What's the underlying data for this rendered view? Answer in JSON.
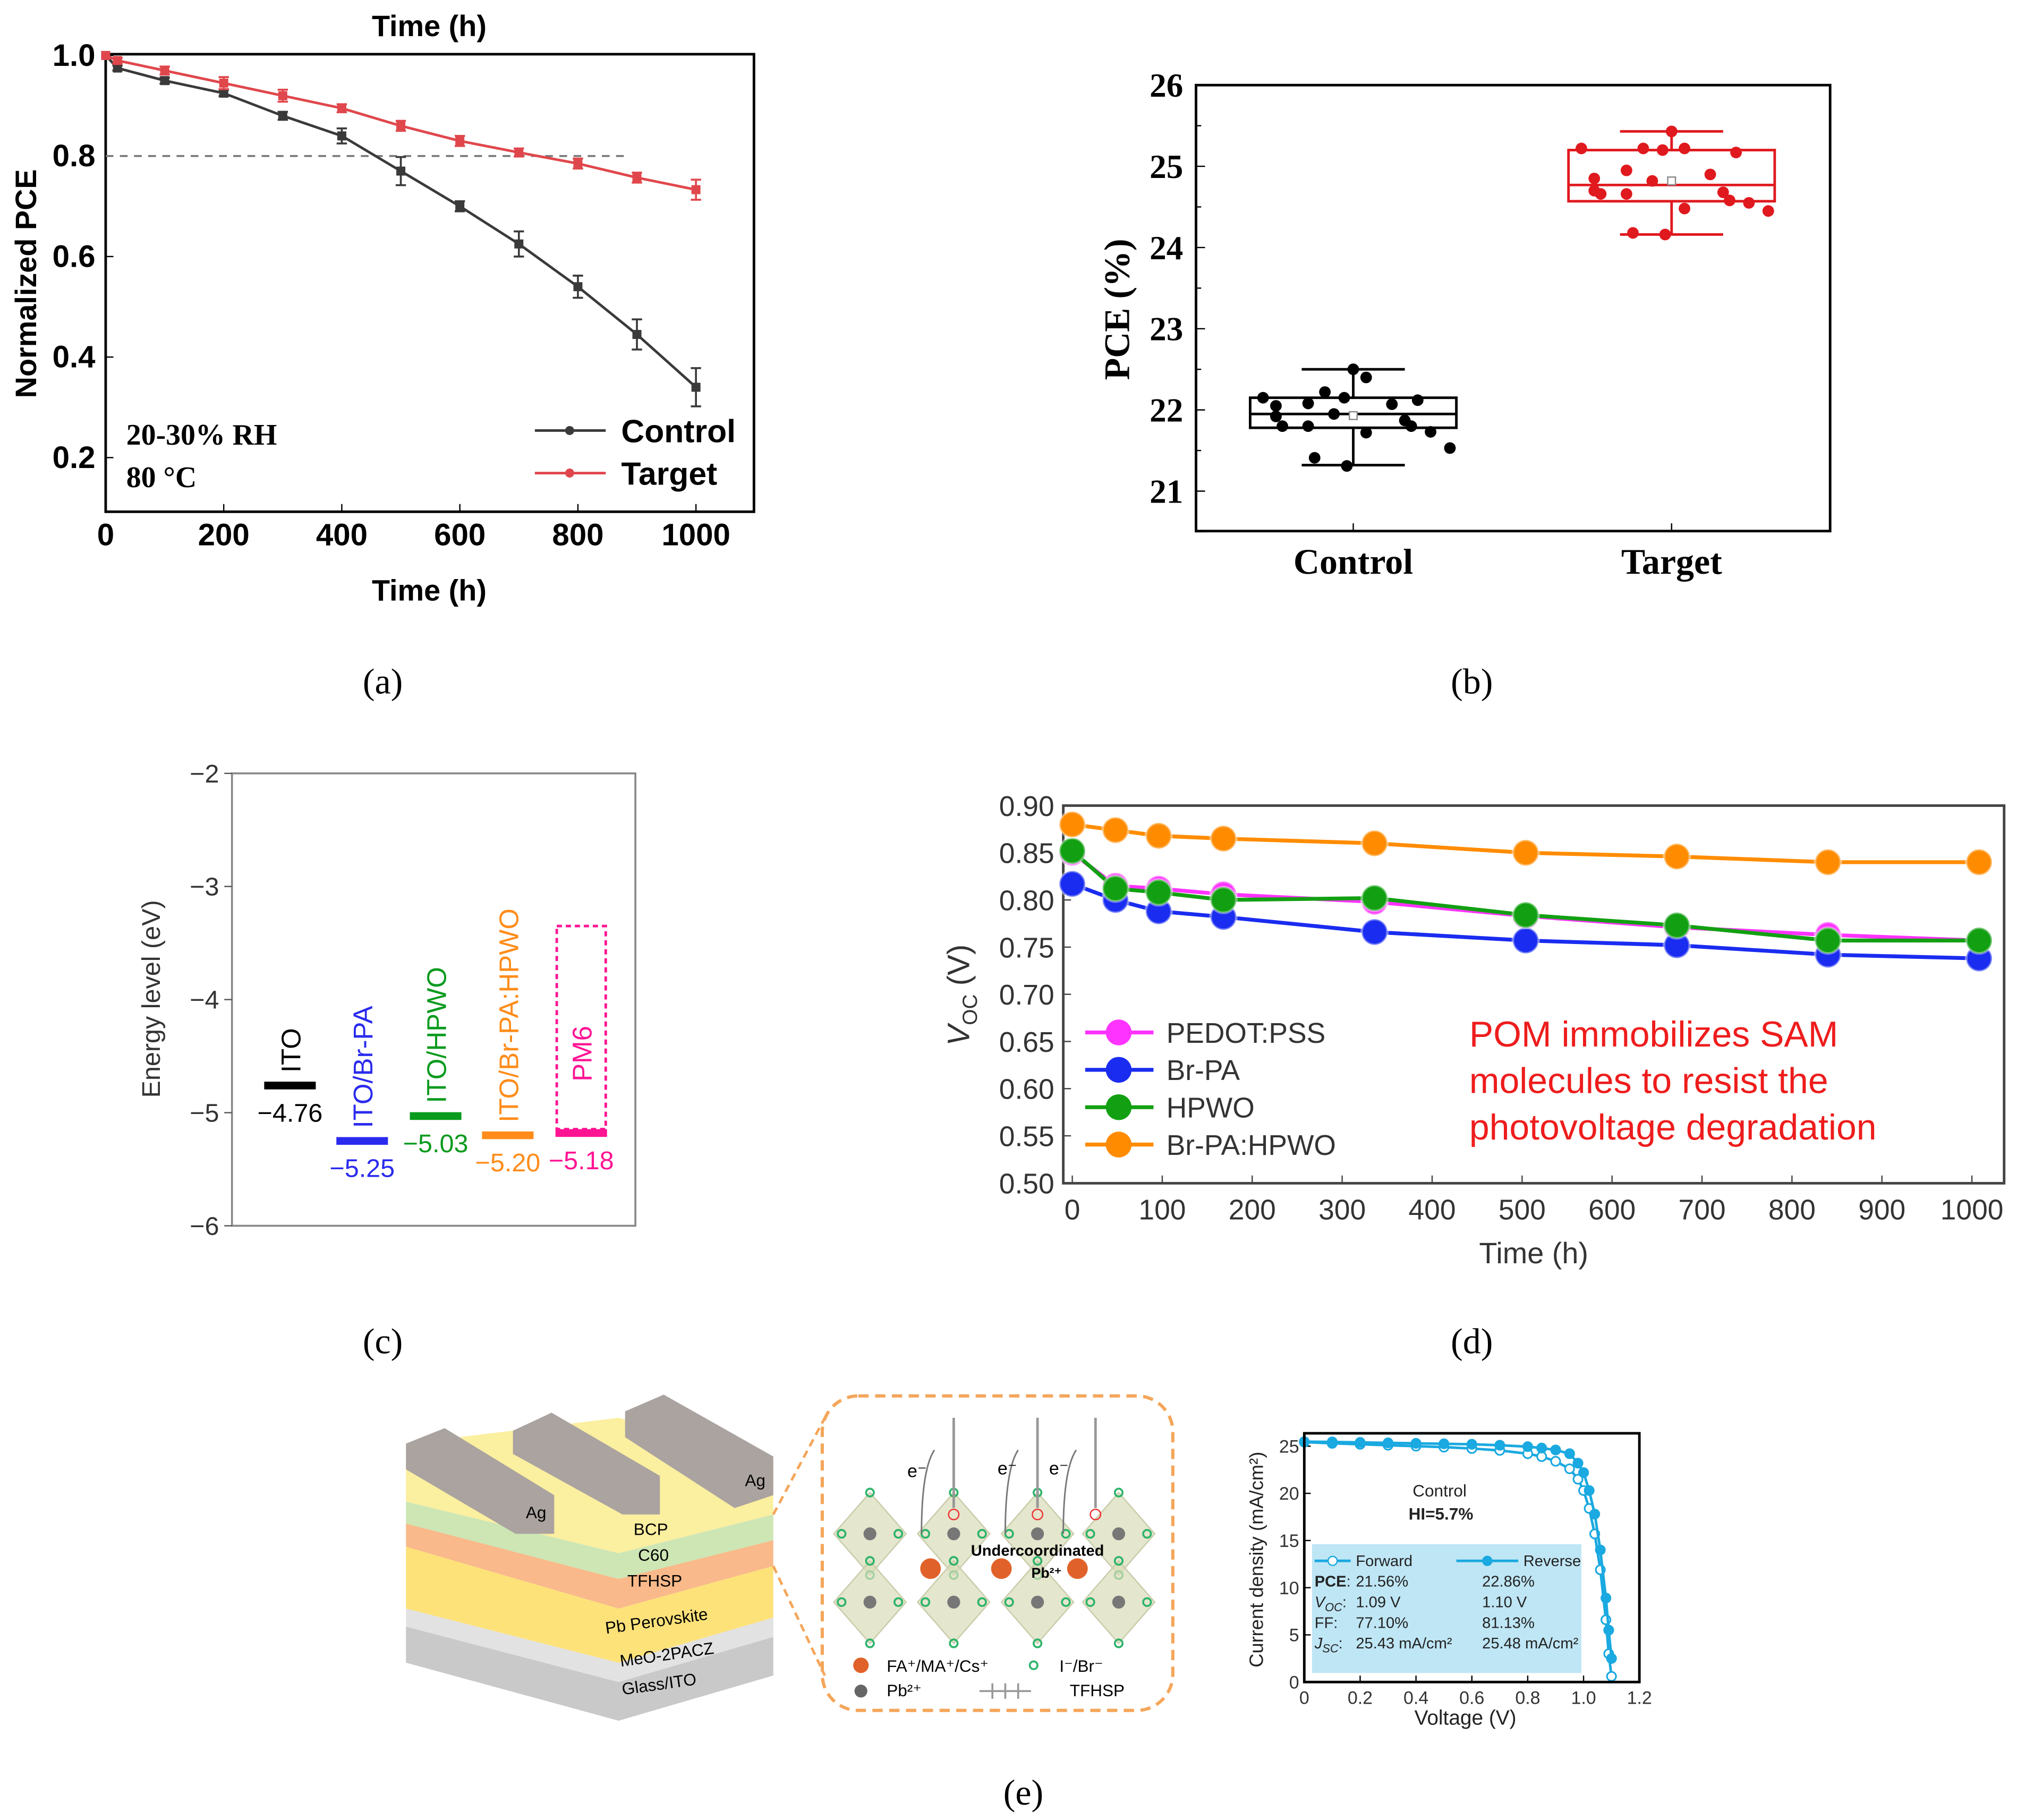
{
  "panel_labels": {
    "a": "(a)",
    "b": "(b)",
    "c": "(c)",
    "d": "(d)",
    "e": "(e)"
  },
  "chart_data": [
    {
      "id": "a",
      "type": "line",
      "title": "Time (h)",
      "xlabel": "Time (h)",
      "ylabel": "Normalized PCE",
      "xlim": [
        0,
        1100
      ],
      "ylim": [
        0.09,
        1.0
      ],
      "xticks": [
        0,
        200,
        400,
        600,
        800,
        1000
      ],
      "yticks": [
        0.2,
        0.4,
        0.6,
        0.8,
        1.0
      ],
      "x": [
        0,
        20,
        100,
        200,
        300,
        400,
        500,
        600,
        700,
        800,
        900,
        1000
      ],
      "series": [
        {
          "name": "Control",
          "color": "#3a3a3a",
          "values": [
            1.0,
            0.975,
            0.95,
            0.925,
            0.88,
            0.84,
            0.77,
            0.7,
            0.625,
            0.54,
            0.445,
            0.34
          ],
          "errors": [
            0,
            0.005,
            0.006,
            0.006,
            0.008,
            0.015,
            0.028,
            0.01,
            0.025,
            0.022,
            0.03,
            0.038
          ]
        },
        {
          "name": "Target",
          "color": "#e0474c",
          "values": [
            1.0,
            0.99,
            0.97,
            0.945,
            0.92,
            0.895,
            0.86,
            0.83,
            0.807,
            0.785,
            0.757,
            0.733
          ],
          "errors": [
            0,
            0.005,
            0.008,
            0.012,
            0.012,
            0.008,
            0.01,
            0.01,
            0.008,
            0.01,
            0.01,
            0.02
          ]
        }
      ],
      "reference_line": {
        "y": 0.8,
        "x_range": [
          0,
          880
        ],
        "style": "dashed"
      },
      "annotations": [
        "20-30% RH",
        "80 °C"
      ],
      "legend": "bottom-right"
    },
    {
      "id": "b",
      "type": "box",
      "ylabel": "PCE (%)",
      "ylim": [
        20.5,
        26
      ],
      "yticks": [
        21,
        22,
        23,
        24,
        25,
        26
      ],
      "categories": [
        "Control",
        "Target"
      ],
      "series": [
        {
          "name": "Control",
          "color": "#000000",
          "q1": 21.78,
          "median": 21.95,
          "q3": 22.15,
          "whisker_low": 21.32,
          "whisker_high": 22.5,
          "mean": 21.93,
          "points": [
            22.5,
            22.4,
            22.22,
            22.15,
            22.15,
            22.12,
            22.08,
            22.07,
            22.05,
            21.95,
            21.92,
            21.87,
            21.8,
            21.8,
            21.8,
            21.73,
            21.72,
            21.53,
            21.41,
            21.31
          ]
        },
        {
          "name": "Target",
          "color": "#e0191e",
          "q1": 24.57,
          "median": 24.77,
          "q3": 25.2,
          "whisker_low": 24.16,
          "whisker_high": 25.43,
          "mean": 24.82,
          "points": [
            25.43,
            25.22,
            25.22,
            25.22,
            25.2,
            25.17,
            24.95,
            24.9,
            24.85,
            24.82,
            24.7,
            24.68,
            24.66,
            24.66,
            24.58,
            24.55,
            24.48,
            24.45,
            24.18,
            24.16
          ]
        }
      ]
    },
    {
      "id": "c",
      "type": "bar",
      "ylabel": "Energy level (eV)",
      "ylim": [
        -6,
        -2
      ],
      "yticks": [
        -2,
        -3,
        -4,
        -5,
        -6
      ],
      "items": [
        {
          "name": "ITO",
          "value": -4.76,
          "label": "−4.76",
          "color": "#000000"
        },
        {
          "name": "ITO/Br-PA",
          "value": -5.25,
          "label": "−5.25",
          "color": "#2a2aee"
        },
        {
          "name": "ITO/HPWO",
          "value": -5.03,
          "label": "−5.03",
          "color": "#0a9a1e"
        },
        {
          "name": "ITO/Br-PA:HPWO",
          "value": -5.2,
          "label": "−5.20",
          "color": "#ff8c1a"
        },
        {
          "name": "PM6",
          "value": -5.18,
          "label": "−5.18",
          "color": "#ff1493",
          "dashed_top": -3.35
        }
      ]
    },
    {
      "id": "d",
      "type": "line",
      "xlabel": "Time (h)",
      "ylabel": "V",
      "ylabel_sub": "OC",
      "ylabel_unit": " (V)",
      "xlim": [
        -10,
        1030
      ],
      "ylim": [
        0.5,
        0.9
      ],
      "xticks": [
        0,
        100,
        200,
        300,
        400,
        500,
        600,
        700,
        800,
        900,
        1000
      ],
      "yticks": [
        0.5,
        0.55,
        0.6,
        0.65,
        0.7,
        0.75,
        0.8,
        0.85,
        0.9
      ],
      "x": [
        0,
        48,
        96,
        168,
        336,
        504,
        672,
        840,
        1008
      ],
      "series": [
        {
          "name": "PEDOT:PSS",
          "color": "#ff33ff",
          "values": [
            0.85,
            0.815,
            0.812,
            0.806,
            0.798,
            0.783,
            0.771,
            0.763,
            0.757
          ]
        },
        {
          "name": "Br-PA",
          "color": "#1a2cf0",
          "values": [
            0.817,
            0.8,
            0.788,
            0.782,
            0.766,
            0.757,
            0.752,
            0.742,
            0.738
          ]
        },
        {
          "name": "HPWO",
          "color": "#12a012",
          "values": [
            0.852,
            0.812,
            0.808,
            0.8,
            0.802,
            0.784,
            0.773,
            0.757,
            0.757
          ]
        },
        {
          "name": "Br-PA:HPWO",
          "color": "#ff8c00",
          "values": [
            0.88,
            0.874,
            0.868,
            0.865,
            0.86,
            0.85,
            0.846,
            0.84,
            0.84
          ]
        }
      ],
      "annotation": [
        "POM immobilizes SAM",
        "molecules to resist the",
        "photovoltage degradation"
      ],
      "annotation_color": "#ee1c1c",
      "legend": "bottom-left"
    },
    {
      "id": "e",
      "type": "line",
      "xlabel": "Voltage (V)",
      "ylabel": "Current density (mA/cm²)",
      "xlim": [
        0,
        1.2
      ],
      "ylim": [
        0,
        25.8
      ],
      "xticks": [
        "0",
        "0.2",
        "0.4",
        "0.6",
        "0.8",
        "1.0",
        "1.2"
      ],
      "yticks": [
        0,
        5,
        10,
        15,
        20,
        25
      ],
      "x": [
        0,
        0.1,
        0.2,
        0.3,
        0.4,
        0.5,
        0.6,
        0.7,
        0.8,
        0.85,
        0.9,
        0.95,
        0.98,
        1.0,
        1.02,
        1.04,
        1.06,
        1.08,
        1.09,
        1.1
      ],
      "series": [
        {
          "name": "Forward",
          "color": "#1aa9e0",
          "marker": "open",
          "values": [
            25.43,
            25.3,
            25.2,
            25.1,
            25.0,
            24.9,
            24.75,
            24.55,
            24.2,
            23.9,
            23.4,
            22.6,
            21.5,
            20.3,
            18.4,
            15.7,
            11.9,
            6.6,
            3.0,
            0.6
          ]
        },
        {
          "name": "Reverse",
          "color": "#1aa9e0",
          "marker": "filled",
          "values": [
            25.48,
            25.45,
            25.4,
            25.35,
            25.3,
            25.25,
            25.2,
            25.1,
            24.95,
            24.8,
            24.6,
            24.2,
            23.2,
            22.2,
            20.3,
            17.8,
            14.0,
            8.9,
            5.5,
            2.5
          ]
        }
      ],
      "title": "Control",
      "subtitle": "HI=5.7%",
      "table": {
        "rows": [
          {
            "label": "PCE",
            "label_sub": "",
            "forward": "21.56%",
            "reverse": "22.86%"
          },
          {
            "label": "V",
            "label_sub": "OC",
            "forward": "1.09 V",
            "reverse": "1.10 V"
          },
          {
            "label": "FF",
            "label_sub": "",
            "forward": "77.10%",
            "reverse": "81.13%"
          },
          {
            "label": "J",
            "label_sub": "SC",
            "forward": "25.43 mA/cm²",
            "reverse": "25.48 mA/cm²"
          }
        ]
      }
    }
  ],
  "diagram": {
    "electrode": "Ag",
    "layers": [
      "BCP",
      "C60",
      "TFHSP",
      "Pb Perovskite",
      "MeO-2PACZ",
      "Glass/ITO"
    ],
    "layer_colors": [
      "#fbefa0",
      "#cde6b4",
      "#f9b98a",
      "#fde27a",
      "#e2e2e2",
      "#c9c9c9"
    ],
    "inset": {
      "electron": "e⁻",
      "undercoordinated": "Undercoordinated",
      "pb_site": "Pb²⁺",
      "legend": [
        "FA⁺/MA⁺/Cs⁺",
        "I⁻/Br⁻",
        "Pb²⁺",
        "TFHSP"
      ]
    }
  }
}
